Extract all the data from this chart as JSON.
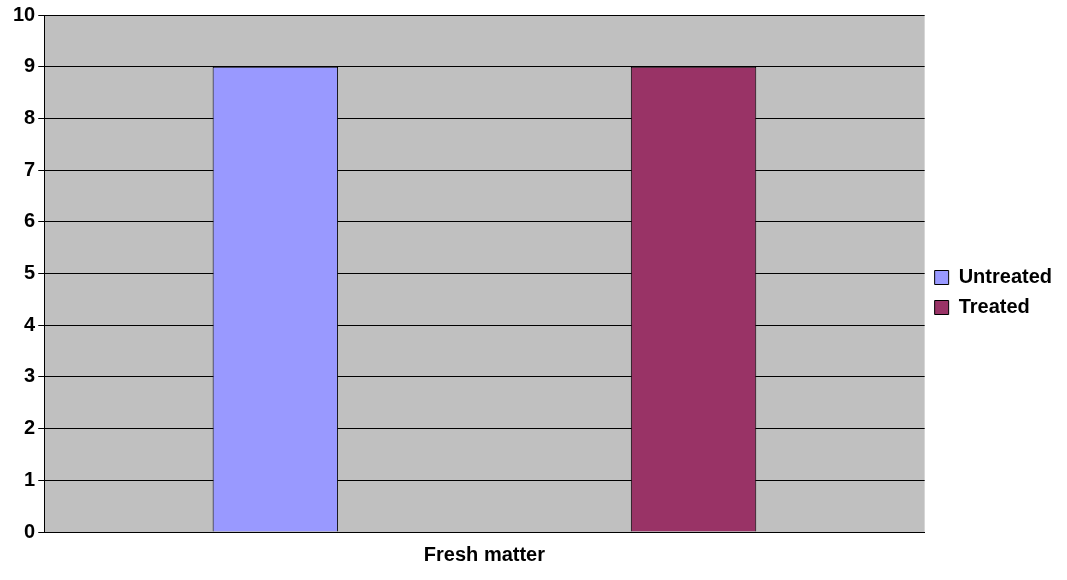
{
  "chart_data": {
    "type": "bar",
    "categories": [
      "Fresh matter"
    ],
    "series": [
      {
        "name": "Untreated",
        "color": "#9999ff",
        "values": [
          9
        ]
      },
      {
        "name": "Treated",
        "color": "#993366",
        "values": [
          9
        ]
      }
    ],
    "ylim": [
      0,
      10
    ],
    "yticks": [
      0,
      1,
      2,
      3,
      4,
      5,
      6,
      7,
      8,
      9,
      10
    ],
    "grid": "y",
    "legend": "right"
  }
}
